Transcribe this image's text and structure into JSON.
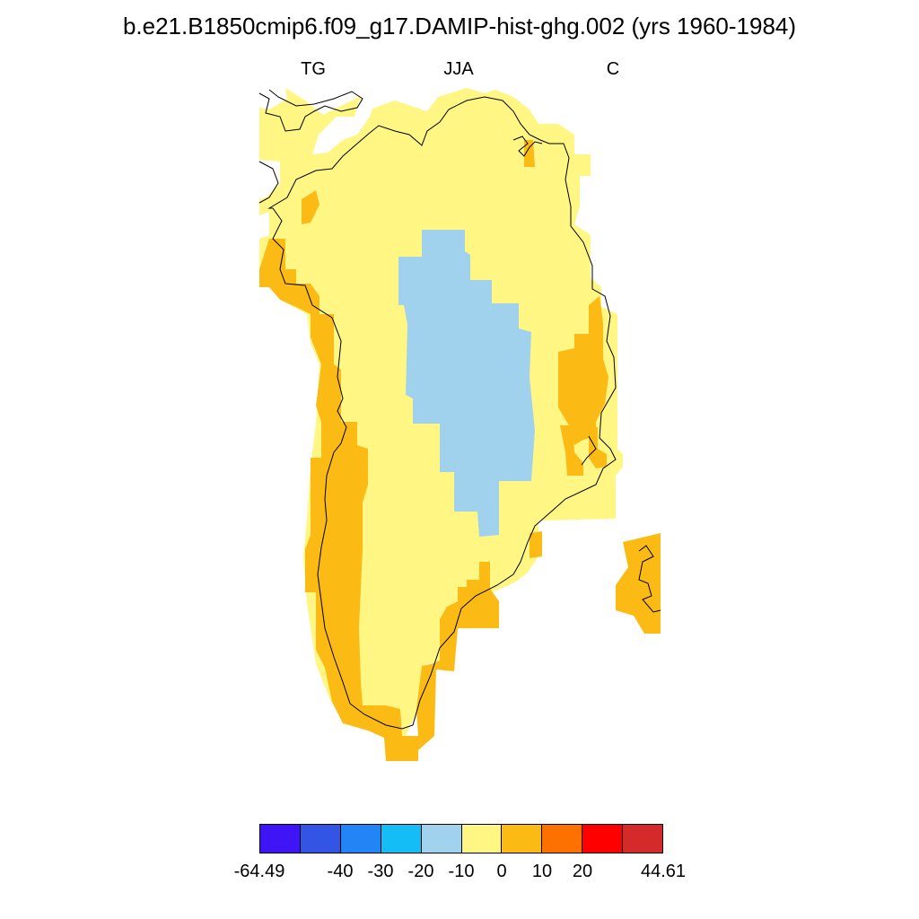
{
  "title": "b.e21.B1850cmip6.f09_g17.DAMIP-hist-ghg.002 (yrs 1960-1984)",
  "subtitles": {
    "left": "TG",
    "center": "JJA",
    "right": "C"
  },
  "colors": {
    "c_neg50": "#3f14f5",
    "c_neg40": "#3355e6",
    "c_neg30": "#2385f5",
    "c_neg20": "#14bdf5",
    "c_neg10": "#a0d2ee",
    "c_0": "#fff684",
    "c_10": "#fcbb14",
    "c_20": "#fd7100",
    "c_30": "#ff0000",
    "c_40": "#d52a2a"
  },
  "colorbar": {
    "swatches": [
      "#3f14f5",
      "#3355e6",
      "#2385f5",
      "#14bdf5",
      "#a0d2ee",
      "#fff684",
      "#fcbb14",
      "#fd7100",
      "#ff0000",
      "#d52a2a"
    ],
    "labels": [
      "-64.49",
      "-40",
      "-30",
      "-20",
      "-10",
      "0",
      "10",
      "20",
      "44.61"
    ]
  }
}
